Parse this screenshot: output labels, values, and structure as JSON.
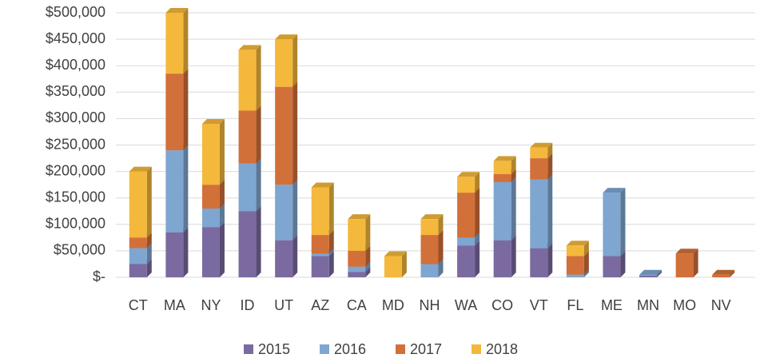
{
  "chart_data": {
    "type": "bar",
    "stacked": true,
    "categories": [
      "CT",
      "MA",
      "NY",
      "ID",
      "UT",
      "AZ",
      "CA",
      "MD",
      "NH",
      "WA",
      "CO",
      "VT",
      "FL",
      "ME",
      "MN",
      "MO",
      "NV"
    ],
    "series": [
      {
        "name": "2015",
        "color": "#7b6aa0",
        "values": [
          25000,
          85000,
          95000,
          125000,
          70000,
          40000,
          10000,
          0,
          0,
          60000,
          70000,
          55000,
          0,
          40000,
          3000,
          0,
          0
        ]
      },
      {
        "name": "2016",
        "color": "#7ea6d1",
        "values": [
          30000,
          155000,
          35000,
          90000,
          105000,
          5000,
          10000,
          0,
          25000,
          15000,
          110000,
          130000,
          5000,
          120000,
          2000,
          0,
          0
        ]
      },
      {
        "name": "2017",
        "color": "#d2703a",
        "values": [
          20000,
          145000,
          45000,
          100000,
          185000,
          35000,
          30000,
          0,
          55000,
          85000,
          15000,
          40000,
          35000,
          0,
          0,
          45000,
          5000
        ]
      },
      {
        "name": "2018",
        "color": "#f4b83c",
        "values": [
          125000,
          115000,
          115000,
          115000,
          90000,
          90000,
          60000,
          40000,
          30000,
          30000,
          25000,
          20000,
          20000,
          0,
          0,
          0,
          0
        ]
      }
    ],
    "ylim": [
      0,
      500000
    ],
    "yticks": [
      {
        "value": 0,
        "label": "$-"
      },
      {
        "value": 50000,
        "label": "$50,000"
      },
      {
        "value": 100000,
        "label": "$100,000"
      },
      {
        "value": 150000,
        "label": "$150,000"
      },
      {
        "value": 200000,
        "label": "$200,000"
      },
      {
        "value": 250000,
        "label": "$250,000"
      },
      {
        "value": 300000,
        "label": "$300,000"
      },
      {
        "value": 350000,
        "label": "$350,000"
      },
      {
        "value": 400000,
        "label": "$400,000"
      },
      {
        "value": 450000,
        "label": "$450,000"
      },
      {
        "value": 500000,
        "label": "$500,000"
      }
    ],
    "grid": true,
    "legend": "bottom"
  }
}
